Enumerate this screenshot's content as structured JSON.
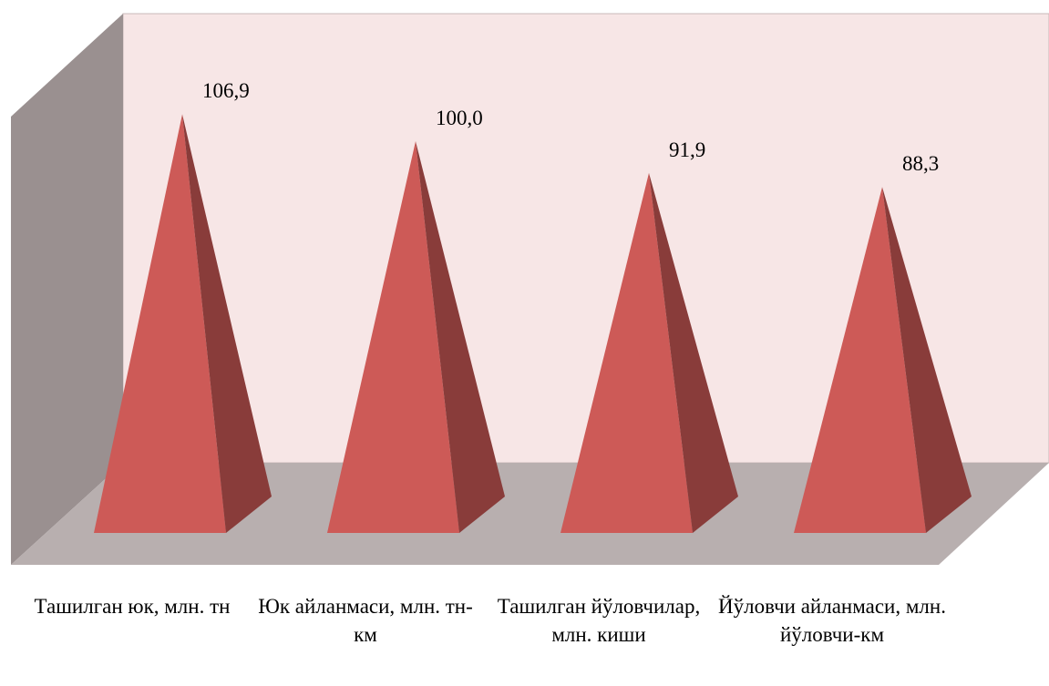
{
  "chart_data": {
    "type": "pyramid",
    "categories": [
      "Ташилган юк, млн. тн",
      "Юк айланмаси, млн. тн-км",
      "Ташилган йўловчилар, млн. киши",
      "Йўловчи айланмаси, млн. йўловчи-км"
    ],
    "values": [
      106.9,
      100.0,
      91.9,
      88.3
    ],
    "value_labels": [
      "106,9",
      "100,0",
      "91,9",
      "88,3"
    ],
    "color": "#cd5a57"
  }
}
